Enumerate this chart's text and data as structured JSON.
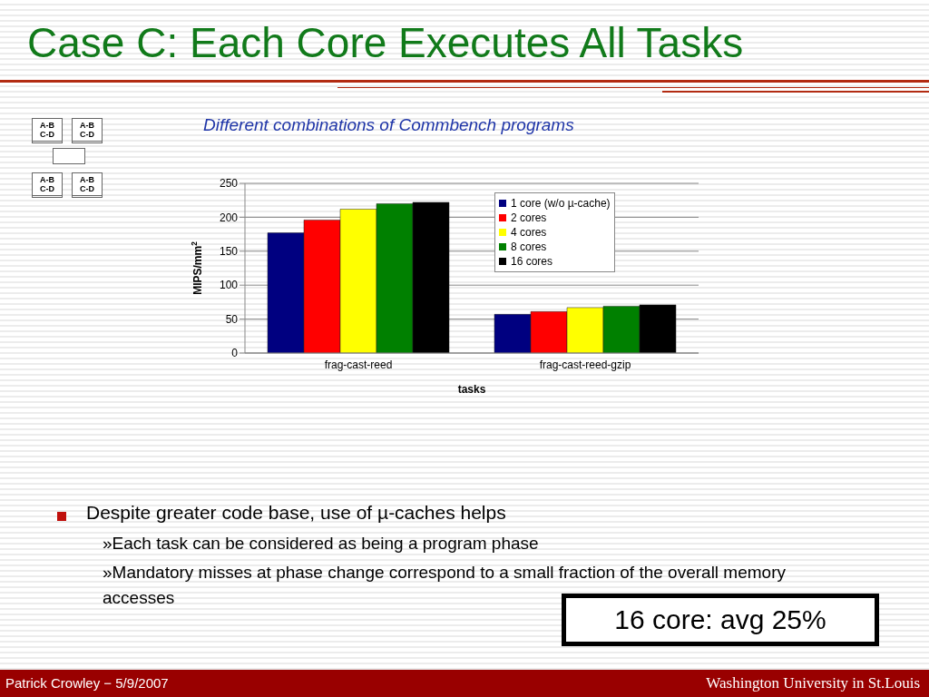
{
  "chart_data": {
    "type": "bar",
    "title": "Case C: Each Core Executes All Tasks",
    "subtitle": "Different combinations of Commbench programs",
    "xlabel": "tasks",
    "ylabel": "MIPS/mm$^{2}$",
    "categories": [
      "frag-cast-reed",
      "frag-cast-reed-gzip"
    ],
    "series": [
      {
        "name": "1 core (w/o µ-cache)",
        "color": "#000080",
        "values": [
          177,
          57
        ]
      },
      {
        "name": "2 cores",
        "color": "#ff0000",
        "values": [
          196,
          61
        ]
      },
      {
        "name": "4 cores",
        "color": "#ffff00",
        "values": [
          212,
          67
        ]
      },
      {
        "name": "8 cores",
        "color": "#008000",
        "values": [
          220,
          69
        ]
      },
      {
        "name": "16 cores",
        "color": "#000000",
        "values": [
          222,
          71
        ]
      }
    ],
    "ylim": [
      0,
      250
    ],
    "yticks": [
      0,
      50,
      100,
      150,
      200,
      250
    ],
    "grid": "y",
    "legend": "top right",
    "annotations": [
      "A-B\nC-D",
      "A-B\nC-D",
      "A-B\nC-D",
      "A-B\nC-D",
      "Despite greater code base, use of µ-caches helps",
      "»Each task can be considered as being a program phase",
      "»Mandatory misses at phase change correspond to a small fraction of the overall memory accesses",
      "16 core: avg 25%",
      "Patrick Crowley − 5/9/2007",
      "Washington University in St.Louis"
    ]
  }
}
